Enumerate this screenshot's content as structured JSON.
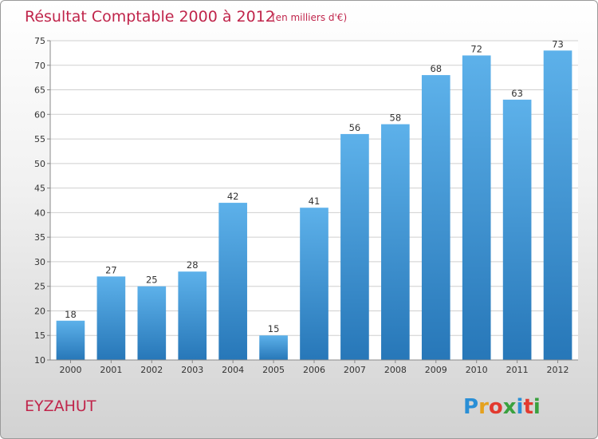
{
  "chart_data": {
    "type": "bar",
    "title": "Résultat Comptable 2000 à 2012",
    "subtitle": "(en milliers d'€)",
    "categories": [
      "2000",
      "2001",
      "2002",
      "2003",
      "2004",
      "2005",
      "2006",
      "2007",
      "2008",
      "2009",
      "2010",
      "2011",
      "2012"
    ],
    "values": [
      18,
      27,
      25,
      28,
      42,
      15,
      41,
      56,
      58,
      68,
      72,
      63,
      73
    ],
    "ylim": [
      10,
      75
    ],
    "yticks": [
      10,
      15,
      20,
      25,
      30,
      35,
      40,
      45,
      50,
      55,
      60,
      65,
      70,
      75
    ],
    "xlabel": "",
    "ylabel": "",
    "grid": true
  },
  "commune": "EYZAHUT",
  "logo": {
    "letters": [
      "P",
      "r",
      "o",
      "x",
      "i",
      "t",
      "i"
    ],
    "colors": [
      "#2a8fd6",
      "#e5a11e",
      "#e23a2f",
      "#3aa13f",
      "#2a8fd6",
      "#e23a2f",
      "#3aa13f"
    ]
  },
  "colors": {
    "bar_top": "#5db1ea",
    "bar_bottom": "#2777b8",
    "grid": "#cfcfcf"
  }
}
